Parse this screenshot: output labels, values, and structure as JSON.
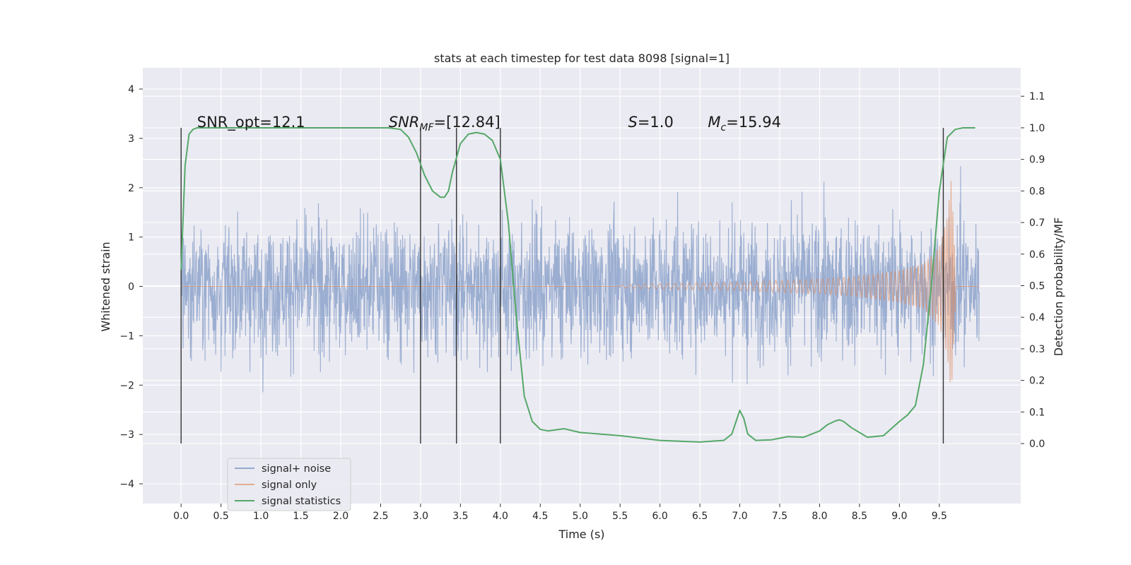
{
  "chart_data": {
    "type": "line",
    "title": "stats at each timestep for test data 8098 [signal=1]",
    "xlabel": "Time (s)",
    "ylabel_left": "Whitened strain",
    "ylabel_right": "Detection probability/MF",
    "xlim": [
      -0.48,
      10.52
    ],
    "ylim_left": [
      -4.4,
      4.43
    ],
    "ylim_right": [
      -0.19,
      1.19
    ],
    "x_ticks": [
      "0.0",
      "0.5",
      "1.0",
      "1.5",
      "2.0",
      "2.5",
      "3.0",
      "3.5",
      "4.0",
      "4.5",
      "5.0",
      "5.5",
      "6.0",
      "6.5",
      "7.0",
      "7.5",
      "8.0",
      "8.5",
      "9.0",
      "9.5"
    ],
    "y_ticks_left": [
      "−4",
      "−3",
      "−2",
      "−1",
      "0",
      "1",
      "2",
      "3",
      "4"
    ],
    "y_ticks_right": [
      "0.0",
      "0.1",
      "0.2",
      "0.3",
      "0.4",
      "0.5",
      "0.6",
      "0.7",
      "0.8",
      "0.9",
      "1.0",
      "1.1"
    ],
    "grid": true,
    "legend_position": "lower-left",
    "colors": {
      "plot_bg": "#eaeaf2",
      "grid": "#ffffff",
      "noise": "#4c72b0",
      "signal": "#dd8452",
      "statistics": "#55a868",
      "markers": "#333333"
    },
    "series": [
      {
        "name": "signal+ noise",
        "axis": "left",
        "description_range": [
          -3.5,
          3.5
        ],
        "x": [
          0,
          10
        ],
        "amplitude_envelope": [
          2.5,
          2.5
        ]
      },
      {
        "name": "signal only",
        "axis": "left",
        "x": [
          5.5,
          6.0,
          6.5,
          7.0,
          7.5,
          8.0,
          8.5,
          9.0,
          9.3,
          9.5,
          9.6,
          9.65,
          9.7
        ],
        "amplitude_envelope": [
          0.03,
          0.05,
          0.07,
          0.09,
          0.12,
          0.15,
          0.21,
          0.32,
          0.45,
          0.8,
          1.4,
          2.2,
          0.5
        ]
      },
      {
        "name": "signal statistics",
        "axis": "right",
        "x": [
          0.0,
          0.05,
          0.1,
          0.15,
          0.2,
          0.3,
          0.5,
          1.0,
          2.0,
          2.6,
          2.75,
          2.85,
          2.95,
          3.05,
          3.15,
          3.25,
          3.3,
          3.35,
          3.4,
          3.5,
          3.6,
          3.7,
          3.8,
          3.9,
          4.0,
          4.1,
          4.2,
          4.3,
          4.4,
          4.5,
          4.6,
          4.8,
          5.0,
          5.5,
          6.0,
          6.5,
          6.8,
          6.9,
          7.0,
          7.05,
          7.1,
          7.2,
          7.4,
          7.6,
          7.8,
          8.0,
          8.1,
          8.2,
          8.25,
          8.3,
          8.4,
          8.6,
          8.8,
          9.0,
          9.1,
          9.2,
          9.3,
          9.4,
          9.5,
          9.6,
          9.7,
          9.8,
          9.95
        ],
        "y": [
          0.55,
          0.88,
          0.98,
          0.995,
          1.0,
          1.0,
          1.0,
          1.0,
          1.0,
          1.0,
          0.995,
          0.97,
          0.92,
          0.85,
          0.8,
          0.78,
          0.78,
          0.8,
          0.86,
          0.95,
          0.98,
          0.985,
          0.98,
          0.96,
          0.9,
          0.7,
          0.4,
          0.15,
          0.07,
          0.045,
          0.04,
          0.047,
          0.035,
          0.025,
          0.01,
          0.005,
          0.01,
          0.03,
          0.105,
          0.08,
          0.03,
          0.01,
          0.012,
          0.022,
          0.02,
          0.04,
          0.06,
          0.072,
          0.075,
          0.07,
          0.05,
          0.02,
          0.025,
          0.07,
          0.09,
          0.12,
          0.25,
          0.5,
          0.8,
          0.97,
          0.995,
          1.0,
          1.0
        ]
      }
    ],
    "vertical_markers_x": [
      0.0,
      3.0,
      3.45,
      4.0,
      9.55
    ],
    "annotations": [
      {
        "text": "SNR_opt=12.1",
        "x": 0.2,
        "y": 1.0
      },
      {
        "text_main": "SNR",
        "text_sub": "MF",
        "text_rest": "=[12.84]",
        "italic": true,
        "x": 2.6,
        "y": 1.0
      },
      {
        "text_main": "S",
        "text_rest": "=1.0",
        "italic": true,
        "x": 5.6,
        "y": 1.0
      },
      {
        "text_main": "M",
        "text_sub": "c",
        "text_rest": "=15.94",
        "italic": true,
        "x": 6.6,
        "y": 1.0
      }
    ]
  }
}
